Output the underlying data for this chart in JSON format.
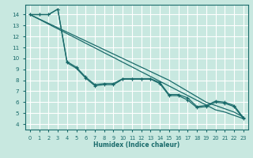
{
  "xlabel": "Humidex (Indice chaleur)",
  "xlim": [
    -0.5,
    23.5
  ],
  "ylim": [
    3.5,
    14.9
  ],
  "yticks": [
    4,
    5,
    6,
    7,
    8,
    9,
    10,
    11,
    12,
    13,
    14
  ],
  "xticks": [
    0,
    1,
    2,
    3,
    4,
    5,
    6,
    7,
    8,
    9,
    10,
    11,
    12,
    13,
    14,
    15,
    16,
    17,
    18,
    19,
    20,
    21,
    22,
    23
  ],
  "bg_color": "#c8e8e0",
  "grid_color": "#ffffff",
  "line_color": "#1a6b6b",
  "curve1_x": [
    0,
    1,
    2,
    3,
    4,
    5,
    6,
    7,
    8,
    9,
    10,
    11,
    12,
    13,
    14,
    15,
    16,
    17,
    18,
    19,
    20,
    21,
    22,
    23
  ],
  "curve1_y": [
    14.0,
    14.0,
    14.0,
    14.5,
    9.6,
    9.1,
    8.2,
    7.5,
    7.6,
    7.6,
    8.1,
    8.1,
    8.1,
    8.1,
    7.7,
    6.6,
    6.6,
    6.2,
    5.5,
    5.6,
    6.0,
    5.9,
    5.6,
    4.5
  ],
  "curve2_x": [
    0,
    1,
    2,
    3,
    4,
    5,
    6,
    7,
    8,
    9,
    10,
    11,
    12,
    13,
    14,
    15,
    16,
    17,
    18,
    19,
    20,
    21,
    22,
    23
  ],
  "curve2_y": [
    14.0,
    14.0,
    14.0,
    14.5,
    9.7,
    9.2,
    8.3,
    7.6,
    7.7,
    7.7,
    8.15,
    8.15,
    8.15,
    8.15,
    7.8,
    6.7,
    6.7,
    6.4,
    5.6,
    5.7,
    6.1,
    6.0,
    5.7,
    4.6
  ],
  "diag1_x": [
    0,
    1,
    2,
    3,
    4,
    5,
    6,
    7,
    8,
    9,
    10,
    11,
    12,
    13,
    14,
    15,
    16,
    17,
    18,
    19,
    20,
    21,
    22,
    23
  ],
  "diag1_y": [
    14.0,
    13.57,
    13.13,
    12.7,
    12.26,
    11.83,
    11.39,
    10.96,
    10.52,
    10.09,
    9.65,
    9.22,
    8.78,
    8.35,
    7.91,
    7.48,
    7.04,
    6.61,
    6.17,
    5.74,
    5.3,
    5.1,
    4.8,
    4.5
  ],
  "diag2_x": [
    0,
    1,
    2,
    3,
    4,
    5,
    6,
    7,
    8,
    9,
    10,
    11,
    12,
    13,
    14,
    15,
    16,
    17,
    18,
    19,
    20,
    21,
    22,
    23
  ],
  "diag2_y": [
    14.0,
    13.6,
    13.2,
    12.8,
    12.4,
    12.0,
    11.6,
    11.2,
    10.8,
    10.4,
    10.0,
    9.6,
    9.2,
    8.8,
    8.4,
    8.0,
    7.5,
    7.0,
    6.5,
    6.0,
    5.7,
    5.4,
    5.1,
    4.65
  ]
}
